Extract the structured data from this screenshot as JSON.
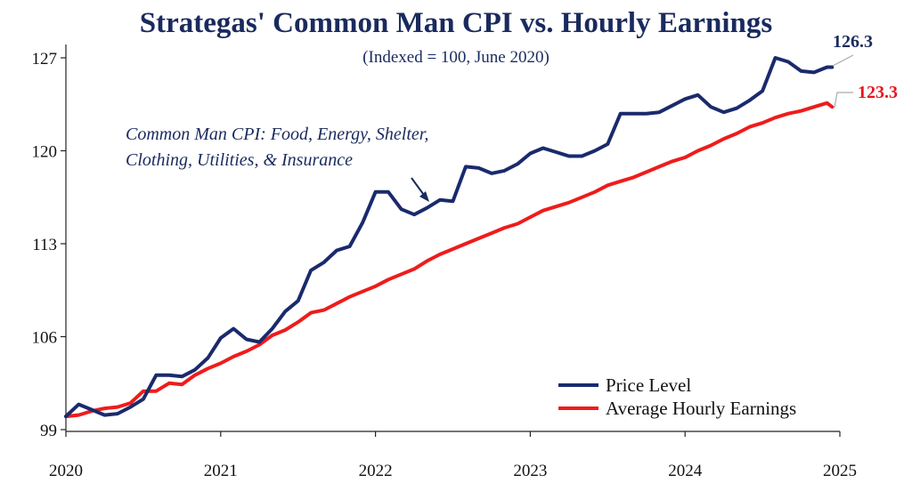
{
  "title": {
    "part1": "Strategas' Common Man CPI vs. ",
    "part2": "Hourly Earnings"
  },
  "subtitle": "(Indexed = 100, June 2020)",
  "annotation": {
    "line1": "Common Man CPI: Food, Energy, Shelter,",
    "line2": "Clothing, Utilities, & Insurance"
  },
  "end_labels": {
    "price": "126.3",
    "earnings": "123.3"
  },
  "colors": {
    "price": "#1a2a6c",
    "earnings": "#ee1c1c",
    "axis": "#222222",
    "title_blue": "#1a2a5e"
  },
  "chart_data": {
    "type": "line",
    "title": "Strategas' Common Man CPI vs. Hourly Earnings",
    "subtitle": "(Indexed = 100, June 2020)",
    "xlabel": "",
    "ylabel": "",
    "xlim": [
      2020,
      2025
    ],
    "ylim": [
      99,
      128
    ],
    "x_ticks": [
      "2020",
      "2021",
      "2022",
      "2023",
      "2024",
      "2025"
    ],
    "y_ticks": [
      "99",
      "106",
      "113",
      "120",
      "127"
    ],
    "y_tick_values": [
      99,
      106,
      113,
      120,
      127
    ],
    "grid": false,
    "legend_position": "bottom-right",
    "series": [
      {
        "name": "Price Level",
        "x": [
          2020.0,
          2020.083,
          2020.167,
          2020.25,
          2020.333,
          2020.417,
          2020.5,
          2020.583,
          2020.667,
          2020.75,
          2020.833,
          2020.917,
          2021.0,
          2021.083,
          2021.167,
          2021.25,
          2021.333,
          2021.417,
          2021.5,
          2021.583,
          2021.667,
          2021.75,
          2021.833,
          2021.917,
          2022.0,
          2022.083,
          2022.167,
          2022.25,
          2022.333,
          2022.417,
          2022.5,
          2022.583,
          2022.667,
          2022.75,
          2022.833,
          2022.917,
          2023.0,
          2023.083,
          2023.167,
          2023.25,
          2023.333,
          2023.417,
          2023.5,
          2023.583,
          2023.667,
          2023.75,
          2023.833,
          2023.917,
          2024.0,
          2024.083,
          2024.167,
          2024.25,
          2024.333,
          2024.417,
          2024.5,
          2024.583,
          2024.667,
          2024.75,
          2024.833,
          2024.917,
          2024.95
        ],
        "values": [
          100.0,
          100.9,
          100.5,
          100.1,
          100.2,
          100.7,
          101.3,
          103.1,
          103.1,
          103.0,
          103.5,
          104.4,
          105.9,
          106.6,
          105.8,
          105.6,
          106.6,
          107.9,
          108.7,
          111.0,
          111.6,
          112.5,
          112.8,
          114.6,
          116.9,
          116.9,
          115.6,
          115.2,
          115.7,
          116.3,
          116.2,
          118.8,
          118.7,
          118.3,
          118.5,
          119.0,
          119.8,
          120.2,
          119.9,
          119.6,
          119.6,
          120.0,
          120.5,
          122.8,
          122.8,
          122.8,
          122.9,
          123.4,
          123.9,
          124.2,
          123.3,
          122.9,
          123.2,
          123.8,
          124.5,
          127.0,
          126.7,
          126.0,
          125.9,
          126.3,
          126.3
        ]
      },
      {
        "name": "Average Hourly Earnings",
        "x": [
          2020.0,
          2020.083,
          2020.167,
          2020.25,
          2020.333,
          2020.417,
          2020.5,
          2020.583,
          2020.667,
          2020.75,
          2020.833,
          2020.917,
          2021.0,
          2021.083,
          2021.167,
          2021.25,
          2021.333,
          2021.417,
          2021.5,
          2021.583,
          2021.667,
          2021.75,
          2021.833,
          2021.917,
          2022.0,
          2022.083,
          2022.167,
          2022.25,
          2022.333,
          2022.417,
          2022.5,
          2022.583,
          2022.667,
          2022.75,
          2022.833,
          2022.917,
          2023.0,
          2023.083,
          2023.167,
          2023.25,
          2023.333,
          2023.417,
          2023.5,
          2023.583,
          2023.667,
          2023.75,
          2023.833,
          2023.917,
          2024.0,
          2024.083,
          2024.167,
          2024.25,
          2024.333,
          2024.417,
          2024.5,
          2024.583,
          2024.667,
          2024.75,
          2024.833,
          2024.917,
          2024.95
        ],
        "values": [
          100.0,
          100.1,
          100.4,
          100.6,
          100.7,
          101.0,
          101.9,
          101.9,
          102.5,
          102.4,
          103.1,
          103.6,
          104.0,
          104.5,
          104.9,
          105.4,
          106.1,
          106.5,
          107.1,
          107.8,
          108.0,
          108.5,
          109.0,
          109.4,
          109.8,
          110.3,
          110.7,
          111.1,
          111.7,
          112.2,
          112.6,
          113.0,
          113.4,
          113.8,
          114.2,
          114.5,
          115.0,
          115.5,
          115.8,
          116.1,
          116.5,
          116.9,
          117.4,
          117.7,
          118.0,
          118.4,
          118.8,
          119.2,
          119.5,
          120.0,
          120.4,
          120.9,
          121.3,
          121.8,
          122.1,
          122.5,
          122.8,
          123.0,
          123.3,
          123.6,
          123.3
        ]
      }
    ]
  }
}
